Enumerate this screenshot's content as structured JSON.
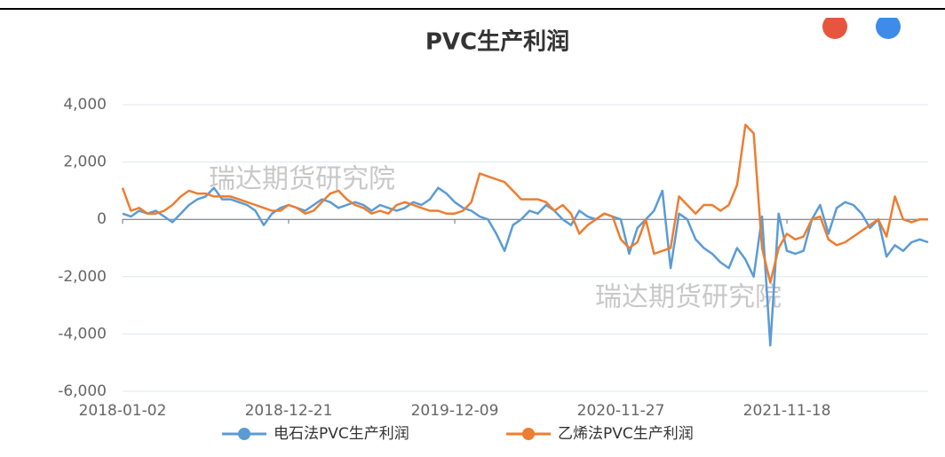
{
  "chart_data": {
    "type": "line",
    "title": "PVC生产利润",
    "categories": [
      "2018-01-02",
      null,
      null,
      null,
      null,
      null,
      null,
      null,
      null,
      null,
      null,
      null,
      null,
      null,
      null,
      null,
      null,
      null,
      null,
      null,
      "2018-12-21",
      null,
      null,
      null,
      null,
      null,
      null,
      null,
      null,
      null,
      null,
      null,
      null,
      null,
      null,
      null,
      null,
      null,
      null,
      null,
      "2019-12-09",
      null,
      null,
      null,
      null,
      null,
      null,
      null,
      null,
      null,
      null,
      null,
      null,
      null,
      null,
      null,
      null,
      null,
      null,
      null,
      "2020-11-27",
      null,
      null,
      null,
      null,
      null,
      null,
      null,
      null,
      null,
      null,
      null,
      null,
      null,
      null,
      null,
      null,
      null,
      null,
      null,
      "2021-11-18",
      null,
      null,
      null,
      null,
      null,
      null,
      null,
      null,
      null,
      null,
      null,
      null,
      null,
      null,
      null,
      null,
      null
    ],
    "series": [
      {
        "name": "电石法PVC生产利润",
        "color": "#5b9bd5",
        "values": [
          200,
          100,
          300,
          200,
          300,
          100,
          -100,
          200,
          500,
          700,
          800,
          1100,
          700,
          700,
          600,
          500,
          300,
          -200,
          200,
          400,
          500,
          400,
          300,
          500,
          700,
          600,
          400,
          500,
          600,
          500,
          300,
          500,
          400,
          300,
          400,
          600,
          500,
          700,
          1100,
          900,
          600,
          400,
          300,
          100,
          0,
          -500,
          -1100,
          -200,
          0,
          300,
          200,
          500,
          300,
          0,
          -200,
          300,
          100,
          0,
          200,
          100,
          0,
          -1200,
          -300,
          0,
          300,
          1000,
          -1700,
          200,
          0,
          -700,
          -1000,
          -1200,
          -1500,
          -1700,
          -1000,
          -1400,
          -2000,
          100,
          -4400,
          200,
          -1100,
          -1200,
          -1100,
          0,
          500,
          -500,
          400,
          600,
          500,
          200,
          -300,
          0,
          -1300,
          -900,
          -1100,
          -800,
          -700,
          -800
        ]
      },
      {
        "name": "乙烯法PVC生产利润",
        "color": "#ed7d31",
        "values": [
          1100,
          300,
          400,
          200,
          200,
          300,
          500,
          800,
          1000,
          900,
          900,
          800,
          800,
          800,
          700,
          600,
          500,
          400,
          300,
          300,
          500,
          400,
          200,
          300,
          600,
          900,
          1000,
          700,
          500,
          400,
          200,
          300,
          200,
          500,
          600,
          500,
          400,
          300,
          300,
          200,
          200,
          300,
          600,
          1600,
          1500,
          1400,
          1300,
          1000,
          700,
          700,
          700,
          600,
          300,
          500,
          200,
          -500,
          -200,
          0,
          200,
          100,
          -700,
          -1000,
          -800,
          0,
          -1200,
          -1100,
          -1000,
          800,
          500,
          200,
          500,
          500,
          300,
          500,
          1200,
          3300,
          3000,
          -1000,
          -2200,
          -1000,
          -500,
          -700,
          -600,
          0,
          100,
          -700,
          -900,
          -800,
          -600,
          -400,
          -200,
          0,
          -600,
          800,
          0,
          -100,
          0,
          0
        ]
      }
    ],
    "ylim": [
      -6000,
      4000
    ],
    "yticks": [
      {
        "value": -6000,
        "label": "-6,000"
      },
      {
        "value": -4000,
        "label": "-4,000"
      },
      {
        "value": -2000,
        "label": "-2,000"
      },
      0,
      {
        "value": 2000,
        "label": "2,000"
      },
      {
        "value": 4000,
        "label": "4,000"
      }
    ],
    "grid": true,
    "annotations": [
      "瑞达期货研究院",
      "瑞达期货研究院"
    ]
  }
}
